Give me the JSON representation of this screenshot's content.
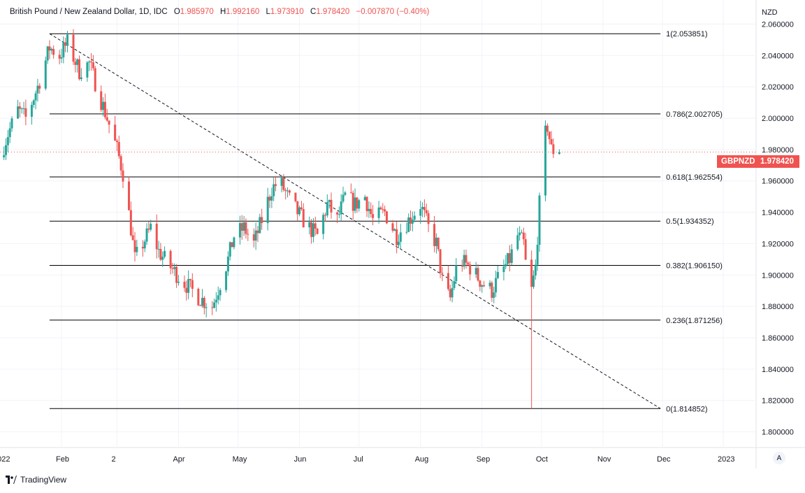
{
  "legend": {
    "symbol_title": "British Pound / New Zealand Dollar, 1D, IDC",
    "open_label": "O",
    "open": "1.985970",
    "high_label": "H",
    "high": "1.992160",
    "low_label": "L",
    "low": "1.973910",
    "close_label": "C",
    "close": "1.978420",
    "change": "−0.007870 (−0.40%)"
  },
  "currency_label": "NZD",
  "price_tag": {
    "symbol": "GBPNZD",
    "value": "1.978420"
  },
  "footer": {
    "brand": "TradingView"
  },
  "auto_button": "A",
  "colors": {
    "up": "#26a69a",
    "down": "#ef5350",
    "grid": "#f0f3fa",
    "line": "#000000"
  },
  "chart_data": {
    "type": "candlestick",
    "title": "British Pound / New Zealand Dollar, 1D, IDC",
    "ylabel": "NZD",
    "ylim": [
      1.79,
      2.07
    ],
    "y_ticks": [
      "2.060000",
      "2.040000",
      "2.020000",
      "2.000000",
      "1.980000",
      "1.960000",
      "1.940000",
      "1.920000",
      "1.900000",
      "1.880000",
      "1.860000",
      "1.840000",
      "1.820000",
      "1.800000"
    ],
    "x_ticks": [
      "2022",
      "Feb",
      "2",
      "Apr",
      "May",
      "Jun",
      "Jul",
      "Aug",
      "Sep",
      "Oct",
      "Nov",
      "Dec",
      "2023"
    ],
    "date_range": [
      "2022-01-01",
      "2023-01-20"
    ],
    "fib_levels": [
      {
        "label": "1(2.053851)",
        "value": 2.053851
      },
      {
        "label": "0.786(2.002705)",
        "value": 2.002705
      },
      {
        "label": "0.618(1.962554)",
        "value": 1.962554
      },
      {
        "label": "0.5(1.934352)",
        "value": 1.934352
      },
      {
        "label": "0.382(1.906150)",
        "value": 1.90615
      },
      {
        "label": "0.236(1.871256)",
        "value": 1.871256
      },
      {
        "label": "0(1.814852)",
        "value": 1.814852
      }
    ],
    "trendline": {
      "from": [
        "2022-01-26",
        2.053851
      ],
      "to": [
        "2022-11-30",
        1.814852
      ],
      "style": "dashed"
    },
    "fib_range_dates": [
      "2022-01-26",
      "2022-11-30"
    ],
    "price_path": [
      [
        "2022-01-01",
        1.975
      ],
      [
        "2022-01-05",
        1.99
      ],
      [
        "2022-01-10",
        2.005
      ],
      [
        "2022-01-14",
        2.0
      ],
      [
        "2022-01-20",
        2.02
      ],
      [
        "2022-01-26",
        2.045
      ],
      [
        "2022-01-31",
        2.04
      ],
      [
        "2022-02-04",
        2.048
      ],
      [
        "2022-02-10",
        2.03
      ],
      [
        "2022-02-15",
        2.035
      ],
      [
        "2022-02-20",
        2.015
      ],
      [
        "2022-02-24",
        2.0
      ],
      [
        "2022-03-01",
        1.98
      ],
      [
        "2022-03-04",
        1.965
      ],
      [
        "2022-03-08",
        1.93
      ],
      [
        "2022-03-10",
        1.91
      ],
      [
        "2022-03-14",
        1.92
      ],
      [
        "2022-03-18",
        1.93
      ],
      [
        "2022-03-22",
        1.915
      ],
      [
        "2022-03-28",
        1.905
      ],
      [
        "2022-04-04",
        1.895
      ],
      [
        "2022-04-12",
        1.885
      ],
      [
        "2022-04-18",
        1.88
      ],
      [
        "2022-04-22",
        1.895
      ],
      [
        "2022-04-26",
        1.91
      ],
      [
        "2022-04-29",
        1.925
      ],
      [
        "2022-05-04",
        1.93
      ],
      [
        "2022-05-09",
        1.92
      ],
      [
        "2022-05-13",
        1.935
      ],
      [
        "2022-05-18",
        1.955
      ],
      [
        "2022-05-22",
        1.96
      ],
      [
        "2022-05-26",
        1.95
      ],
      [
        "2022-05-31",
        1.94
      ],
      [
        "2022-06-06",
        1.93
      ],
      [
        "2022-06-10",
        1.925
      ],
      [
        "2022-06-15",
        1.945
      ],
      [
        "2022-06-20",
        1.935
      ],
      [
        "2022-06-24",
        1.95
      ],
      [
        "2022-06-29",
        1.945
      ],
      [
        "2022-07-04",
        1.95
      ],
      [
        "2022-07-08",
        1.935
      ],
      [
        "2022-07-14",
        1.94
      ],
      [
        "2022-07-20",
        1.925
      ],
      [
        "2022-07-26",
        1.935
      ],
      [
        "2022-08-01",
        1.945
      ],
      [
        "2022-08-05",
        1.93
      ],
      [
        "2022-08-09",
        1.92
      ],
      [
        "2022-08-13",
        1.89
      ],
      [
        "2022-08-16",
        1.885
      ],
      [
        "2022-08-20",
        1.91
      ],
      [
        "2022-08-26",
        1.905
      ],
      [
        "2022-09-01",
        1.895
      ],
      [
        "2022-09-06",
        1.89
      ],
      [
        "2022-09-10",
        1.9
      ],
      [
        "2022-09-15",
        1.91
      ],
      [
        "2022-09-19",
        1.925
      ],
      [
        "2022-09-22",
        1.92
      ],
      [
        "2022-09-24",
        1.895
      ],
      [
        "2022-09-26",
        1.89
      ],
      [
        "2022-09-28",
        1.905
      ],
      [
        "2022-09-30",
        1.945
      ],
      [
        "2022-10-02",
        1.985
      ],
      [
        "2022-10-04",
        1.995
      ],
      [
        "2022-10-06",
        1.98
      ],
      [
        "2022-10-10",
        1.978
      ]
    ],
    "last_close": 1.97842
  }
}
